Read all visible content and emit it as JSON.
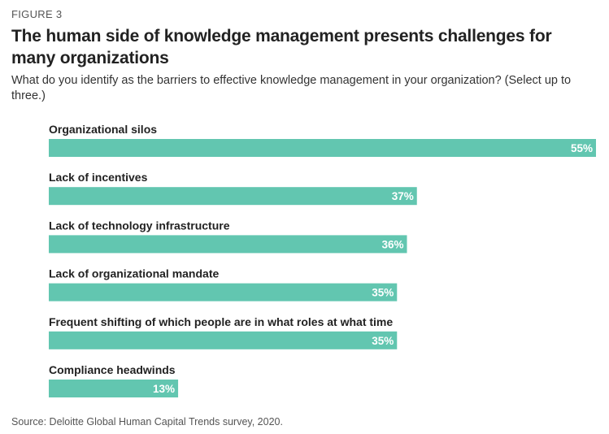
{
  "figure_label": "FIGURE 3",
  "title": "The human side of knowledge management presents challenges for many organizations",
  "subtitle": "What do you identify as the barriers to effective knowledge management in your organization? (Select up to three.)",
  "source": "Source: Deloitte Global Human Capital Trends survey, 2020.",
  "colors": {
    "bar": "#62c6b0",
    "label_text": "#222222",
    "value_text": "#ffffff"
  },
  "chart_data": {
    "type": "bar",
    "orientation": "horizontal",
    "categories": [
      "Organizational silos",
      "Lack of incentives",
      "Lack of technology infrastructure",
      "Lack of organizational mandate",
      "Frequent shifting of which people are in what roles at what time",
      "Compliance headwinds"
    ],
    "values": [
      55,
      37,
      36,
      35,
      35,
      13
    ],
    "value_labels": [
      "55%",
      "37%",
      "36%",
      "35%",
      "35%",
      "13%"
    ],
    "xlim": [
      0,
      55
    ],
    "grid": false,
    "legend": "none"
  }
}
